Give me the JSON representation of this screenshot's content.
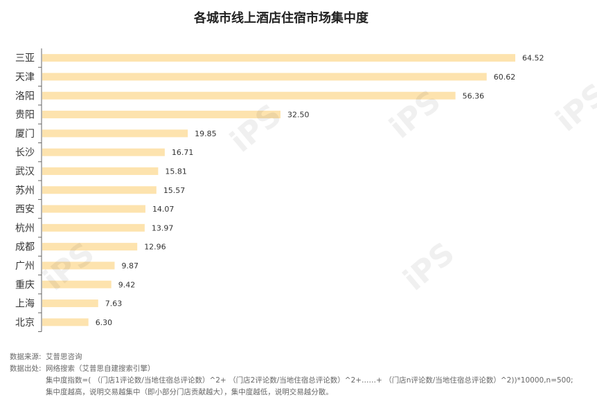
{
  "chart_data": {
    "type": "bar",
    "orientation": "horizontal",
    "title": "各城市线上酒店住宿市场集中度",
    "categories": [
      "三亚",
      "天津",
      "洛阳",
      "贵阳",
      "厦门",
      "长沙",
      "武汉",
      "苏州",
      "西安",
      "杭州",
      "成都",
      "广州",
      "重庆",
      "上海",
      "北京"
    ],
    "values": [
      64.52,
      60.62,
      56.36,
      32.5,
      19.85,
      16.71,
      15.81,
      15.57,
      14.07,
      13.97,
      12.96,
      9.87,
      9.42,
      7.63,
      6.3
    ],
    "value_labels": [
      "64.52",
      "60.62",
      "56.36",
      "32.50",
      "19.85",
      "16.71",
      "15.81",
      "15.57",
      "14.07",
      "13.97",
      "12.96",
      "9.87",
      "9.42",
      "7.63",
      "6.30"
    ],
    "xlim": [
      0,
      64.52
    ],
    "grid": false,
    "colors": {
      "bar": "#fde3ae",
      "axis": "#666666"
    }
  },
  "notes": {
    "source_label": "数据来源:",
    "source_value": "艾普思咨询",
    "origin_label": "数据出处:",
    "origin_value": "网络搜索（艾普思自建搜索引擎）",
    "formula": "集中度指数=( （门店1评论数/当地住宿总评论数）^2+ （门店2评论数/当地住宿总评论数）^2+……+ （门店n评论数/当地住宿总评论数）^2))*10000,n=500;",
    "explanation": "集中度越高，说明交易越集中（即小部分门店贡献越大），集中度越低，说明交易越分散。"
  },
  "watermark": "iPS 艾普思 IPS Consulting"
}
